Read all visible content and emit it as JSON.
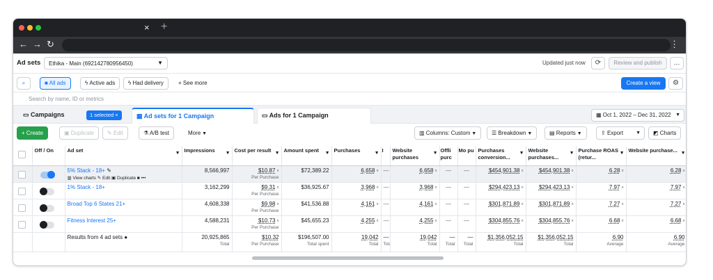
{
  "browser": {
    "close_glyph": "×",
    "new_tab_glyph": "+"
  },
  "header": {
    "title": "Ad sets",
    "account": "Ethika - Main (692142780956450)",
    "updated": "Updated just now",
    "review_publish": "Review and publish"
  },
  "filters": {
    "all_ads": "All ads",
    "active_ads": "Active ads",
    "had_delivery": "Had delivery",
    "see_more": "See more",
    "create_view": "Create a view"
  },
  "search": {
    "placeholder": "Search by name, ID or metrics"
  },
  "levels": {
    "campaigns": "Campaigns",
    "selected_badge": "1 selected",
    "adsets": "Ad sets for 1 Campaign",
    "ads": "Ads for 1 Campaign",
    "date_range": "Oct 1, 2022 – Dec 31, 2022"
  },
  "toolbar": {
    "create": "Create",
    "duplicate": "Duplicate",
    "edit": "Edit",
    "ab_test": "A/B test",
    "more": "More",
    "columns": "Columns: Custom",
    "breakdown": "Breakdown",
    "reports": "Reports",
    "export": "Export",
    "charts": "Charts"
  },
  "table": {
    "headers": {
      "offon": "Off / On",
      "adset": "Ad set",
      "impressions": "Impressions",
      "cost_per_result": "Cost per result",
      "amount_spent": "Amount spent",
      "purchases": "Purchases",
      "col_i": "I",
      "website_purchases": "Website purchases",
      "col_offi": "Offli purc",
      "col_mo": "Mo pu",
      "purchases_conversion": "Purchases conversion...",
      "website_purchases_2": "Website purchases...",
      "purchase_roas": "Purchase ROAS (retur...",
      "website_purchase": "Website purchase..."
    },
    "row_actions": {
      "view_charts": "View charts",
      "edit": "Edit",
      "duplicate": "Duplicate",
      "more": "•••"
    },
    "per_purchase": "Per Purchase",
    "dash": "—",
    "rows": [
      {
        "name": "5% Stack - 18+",
        "on": true,
        "impressions": "8,566,997",
        "cost": "$10.87",
        "spent": "$72,389.22",
        "purchases": "6,658",
        "web_purchases": "6,658",
        "conv_value": "$454,901.38",
        "web_conv_value": "$454,901.38",
        "roas": "6.28",
        "web_roas": "6.28"
      },
      {
        "name": "1% Stack - 18+",
        "on": false,
        "impressions": "3,162,299",
        "cost": "$9.31",
        "spent": "$36,925.67",
        "purchases": "3,968",
        "web_purchases": "3,968",
        "conv_value": "$294,423.13",
        "web_conv_value": "$294,423.13",
        "roas": "7.97",
        "web_roas": "7.97"
      },
      {
        "name": "Broad Top 6 States 21+",
        "on": false,
        "impressions": "4,608,338",
        "cost": "$9.98",
        "spent": "$41,536.88",
        "purchases": "4,161",
        "web_purchases": "4,161",
        "conv_value": "$301,871.89",
        "web_conv_value": "$301,871.89",
        "roas": "7.27",
        "web_roas": "7.27"
      },
      {
        "name": "Fitness Interest 25+",
        "on": false,
        "impressions": "4,588,231",
        "cost": "$10.73",
        "spent": "$45,655.23",
        "purchases": "4,255",
        "web_purchases": "4,255",
        "conv_value": "$304,855.76",
        "web_conv_value": "$304,855.76",
        "roas": "6.68",
        "web_roas": "6.68"
      }
    ],
    "total": {
      "label": "Results from 4 ad sets",
      "impressions": "20,925,865",
      "impressions_sub": "Total",
      "cost": "$10.32",
      "cost_sub": "Per Purchase",
      "spent": "$196,507.00",
      "spent_sub": "Total spent",
      "purchases": "19,042",
      "purchases_sub": "Total",
      "col_i": "—",
      "col_i_sub": "Total",
      "web_purchases": "19,042",
      "web_purchases_sub": "Total",
      "offi": "—",
      "offi_sub": "Total",
      "mo": "—",
      "mo_sub": "Total",
      "conv_value": "$1,356,052.15",
      "conv_value_sub": "Total",
      "web_conv_value": "$1,356,052.15",
      "web_conv_value_sub": "Total",
      "roas": "6.90",
      "roas_sub": "Average",
      "web_roas": "6.90",
      "web_roas_sub": "Average"
    }
  }
}
